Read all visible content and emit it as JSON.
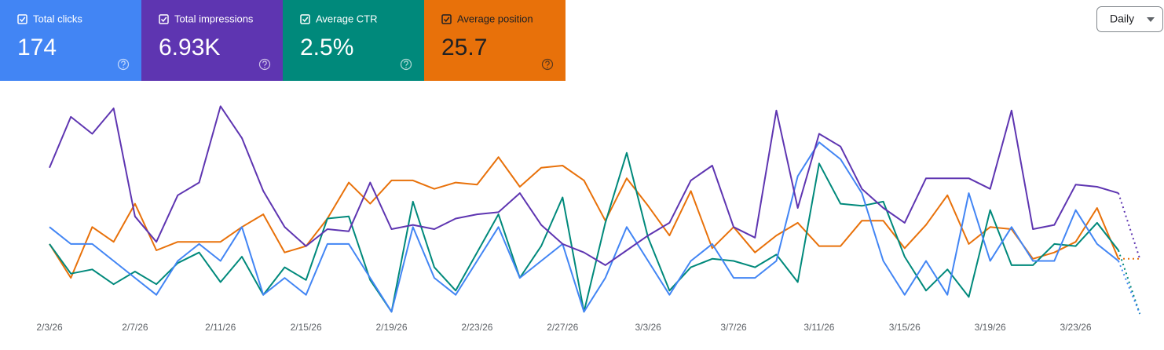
{
  "chart_data": {
    "type": "line",
    "categories": [
      "2/3/26",
      null,
      null,
      null,
      "2/7/26",
      null,
      null,
      null,
      "2/11/26",
      null,
      null,
      null,
      "2/15/26",
      null,
      null,
      null,
      "2/19/26",
      null,
      null,
      null,
      "2/23/26",
      null,
      null,
      null,
      "2/27/26",
      null,
      null,
      null,
      "3/3/26",
      null,
      null,
      null,
      "3/7/26",
      null,
      null,
      null,
      "3/11/26",
      null,
      null,
      null,
      "3/15/26",
      null,
      null,
      null,
      "3/19/26",
      null,
      null,
      null,
      "3/23/26",
      null,
      null,
      null
    ],
    "ylim": [
      0,
      100
    ],
    "series": [
      {
        "name": "Total clicks",
        "total": "174",
        "color": "#4285f4",
        "text_color": "#ffffff",
        "values": [
          41,
          33,
          33,
          25,
          17,
          9,
          25,
          33,
          25,
          41,
          9,
          17,
          9,
          33,
          33,
          17,
          1,
          41,
          17,
          9,
          25,
          41,
          17,
          25,
          33,
          1,
          17,
          41,
          25,
          9,
          25,
          33,
          17,
          17,
          25,
          65,
          81,
          73,
          57,
          25,
          9,
          25,
          9,
          57,
          25,
          41,
          25,
          25,
          49,
          33,
          25,
          0
        ]
      },
      {
        "name": "Total impressions",
        "total": "6.93K",
        "color": "#5e35b1",
        "text_color": "#ffffff",
        "values": [
          69,
          93,
          85,
          97,
          46,
          34,
          56,
          62,
          98,
          83,
          58,
          41,
          32,
          40,
          39,
          62,
          40,
          42,
          40,
          45,
          47,
          48,
          57,
          42,
          33,
          29,
          23,
          30,
          37,
          43,
          63,
          70,
          41,
          36,
          96,
          50,
          85,
          79,
          59,
          50,
          43,
          64,
          64,
          64,
          59,
          96,
          40,
          42,
          61,
          60,
          57,
          26
        ]
      },
      {
        "name": "Average CTR",
        "total": "2.5%",
        "color": "#00897b",
        "text_color": "#ffffff",
        "values": [
          33,
          19,
          21,
          14,
          20,
          14,
          24,
          29,
          15,
          27,
          9,
          22,
          16,
          45,
          46,
          16,
          1,
          53,
          22,
          11,
          29,
          47,
          17,
          32,
          55,
          1,
          43,
          76,
          36,
          11,
          22,
          26,
          25,
          22,
          28,
          15,
          71,
          52,
          51,
          53,
          27,
          11,
          21,
          8,
          49,
          23,
          23,
          33,
          32,
          43,
          30,
          0
        ]
      },
      {
        "name": "Average position",
        "total": "25.7",
        "color": "#e8710a",
        "text_color": "#202124",
        "values": [
          33,
          17,
          41,
          34,
          52,
          30,
          34,
          34,
          34,
          41,
          47,
          29,
          32,
          45,
          62,
          52,
          63,
          63,
          59,
          62,
          61,
          74,
          60,
          69,
          70,
          63,
          44,
          64,
          51,
          37,
          58,
          31,
          41,
          29,
          37,
          43,
          32,
          32,
          44,
          44,
          31,
          42,
          56,
          33,
          41,
          40,
          26,
          29,
          34,
          50,
          26,
          26
        ]
      }
    ]
  },
  "controls": {
    "granularity": "Daily"
  }
}
